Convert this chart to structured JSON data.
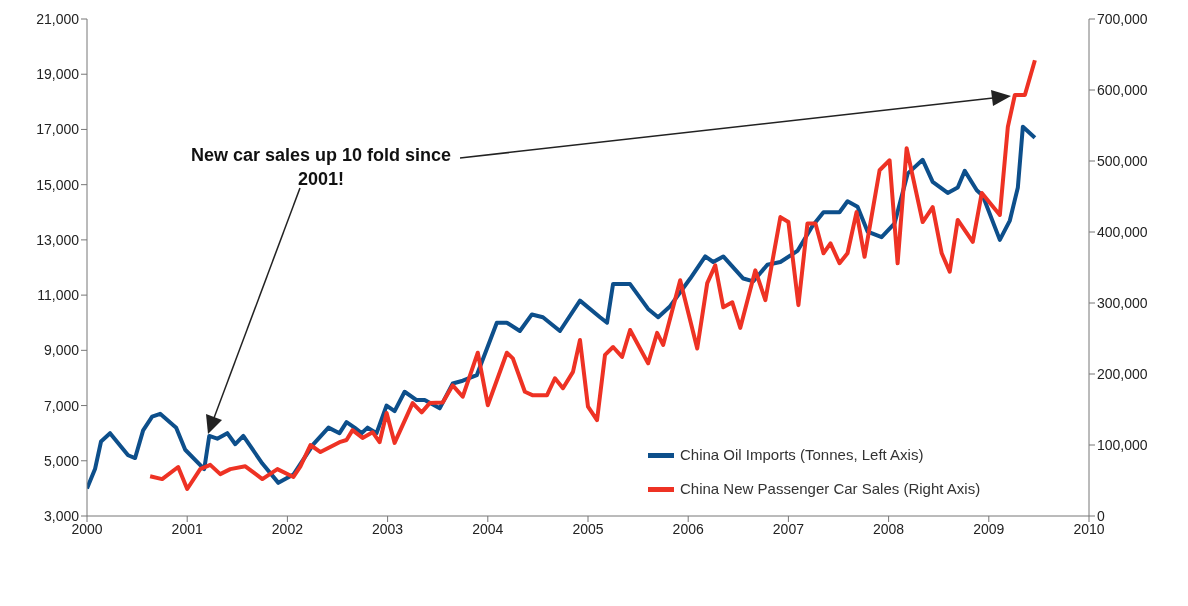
{
  "chart_data": {
    "type": "line",
    "annotations": [
      "New car sales up 10 fold since 2001!"
    ],
    "xlim": [
      2000,
      2010
    ],
    "xticks": [
      2000,
      2001,
      2002,
      2003,
      2004,
      2005,
      2006,
      2007,
      2008,
      2009,
      2010
    ],
    "ylim": [
      3000,
      21000
    ],
    "yticks": [
      {
        "value": 3000,
        "label": "3,000"
      },
      {
        "value": 5000,
        "label": "5,000"
      },
      {
        "value": 7000,
        "label": "7,000"
      },
      {
        "value": 9000,
        "label": "9,000"
      },
      {
        "value": 11000,
        "label": "11,000"
      },
      {
        "value": 13000,
        "label": "13,000"
      },
      {
        "value": 15000,
        "label": "15,000"
      },
      {
        "value": 17000,
        "label": "17,000"
      },
      {
        "value": 19000,
        "label": "19,000"
      },
      {
        "value": 21000,
        "label": "21,000"
      }
    ],
    "y2lim": [
      0,
      700000
    ],
    "y2ticks": [
      0,
      {
        "value": 100000,
        "label": "100,000"
      },
      {
        "value": 200000,
        "label": "200,000"
      },
      {
        "value": 300000,
        "label": "300,000"
      },
      {
        "value": 400000,
        "label": "400,000"
      },
      {
        "value": 500000,
        "label": "500,000"
      },
      {
        "value": 600000,
        "label": "600,000"
      },
      {
        "value": 700000,
        "label": "700,000"
      }
    ],
    "grid": false,
    "legend": "bottom right",
    "marker": "none",
    "line_style": "solid",
    "series": [
      {
        "name": "China Oil Imports (Tonnes, Left Axis)",
        "color": "#0d4f8b",
        "x": [
          2000.0,
          2000.08,
          2000.14,
          2000.23,
          2000.41,
          2000.48,
          2000.56,
          2000.65,
          2000.73,
          2000.89,
          2000.98,
          2001.17,
          2001.22,
          2001.3,
          2001.4,
          2001.48,
          2001.56,
          2001.75,
          2001.91,
          2002.06,
          2002.26,
          2002.41,
          2002.52,
          2002.59,
          2002.67,
          2002.74,
          2002.8,
          2002.89,
          2002.99,
          2003.07,
          2003.17,
          2003.29,
          2003.37,
          2003.52,
          2003.65,
          2003.75,
          2003.89,
          2004.09,
          2004.19,
          2004.32,
          2004.44,
          2004.55,
          2004.72,
          2004.92,
          2005.12,
          2005.19,
          2005.25,
          2005.42,
          2005.6,
          2005.7,
          2005.82,
          2006.02,
          2006.17,
          2006.25,
          2006.35,
          2006.55,
          2006.65,
          2006.79,
          2006.92,
          2007.09,
          2007.24,
          2007.35,
          2007.51,
          2007.59,
          2007.69,
          2007.79,
          2007.93,
          2008.06,
          2008.19,
          2008.34,
          2008.44,
          2008.59,
          2008.69,
          2008.76,
          2008.88,
          2008.94,
          2009.11,
          2009.21,
          2009.29,
          2009.34,
          2009.46
        ],
        "values": [
          4000,
          4700,
          5700,
          6000,
          5200,
          5100,
          6100,
          6600,
          6700,
          6200,
          5400,
          4700,
          5900,
          5800,
          6000,
          5600,
          5900,
          4900,
          4200,
          4500,
          5600,
          6200,
          6000,
          6400,
          6200,
          6000,
          6200,
          6000,
          7000,
          6800,
          7500,
          7200,
          7200,
          6900,
          7800,
          7900,
          8100,
          10000,
          10000,
          9700,
          10300,
          10200,
          9700,
          10800,
          10200,
          10000,
          11400,
          11400,
          10500,
          10200,
          10600,
          11600,
          12400,
          12200,
          12400,
          11600,
          11500,
          12100,
          12200,
          12600,
          13500,
          14000,
          14000,
          14400,
          14200,
          13300,
          13100,
          13600,
          15400,
          15900,
          15100,
          14700,
          14900,
          15500,
          14800,
          14600,
          13000,
          13700,
          14900,
          17100,
          16700
        ]
      },
      {
        "name": "China New Passenger Car Sales (Right Axis)",
        "color": "#ee3224",
        "axis": "y2",
        "x": [
          2000.63,
          2000.75,
          2000.91,
          2001.0,
          2001.13,
          2001.23,
          2001.33,
          2001.43,
          2001.58,
          2001.75,
          2001.9,
          2002.06,
          2002.13,
          2002.23,
          2002.33,
          2002.52,
          2002.59,
          2002.65,
          2002.75,
          2002.85,
          2002.92,
          2002.99,
          2003.07,
          2003.25,
          2003.34,
          2003.42,
          2003.55,
          2003.65,
          2003.75,
          2003.9,
          2004.0,
          2004.19,
          2004.25,
          2004.37,
          2004.45,
          2004.59,
          2004.67,
          2004.75,
          2004.85,
          2004.92,
          2005.0,
          2005.09,
          2005.17,
          2005.25,
          2005.34,
          2005.42,
          2005.6,
          2005.69,
          2005.75,
          2005.92,
          2006.09,
          2006.19,
          2006.27,
          2006.35,
          2006.44,
          2006.52,
          2006.67,
          2006.77,
          2006.92,
          2007.0,
          2007.1,
          2007.19,
          2007.27,
          2007.35,
          2007.42,
          2007.51,
          2007.59,
          2007.68,
          2007.76,
          2007.91,
          2008.01,
          2008.09,
          2008.18,
          2008.34,
          2008.44,
          2008.53,
          2008.61,
          2008.69,
          2008.84,
          2008.93,
          2009.11,
          2009.19,
          2009.26,
          2009.36,
          2009.46
        ],
        "values": [
          56000,
          52000,
          69000,
          38000,
          66000,
          72000,
          59000,
          66000,
          70000,
          52000,
          66000,
          55000,
          70000,
          100000,
          90000,
          104000,
          107000,
          121000,
          110000,
          118000,
          104000,
          145000,
          103000,
          159000,
          146000,
          159000,
          160000,
          184000,
          168000,
          230000,
          156000,
          230000,
          222000,
          175000,
          170000,
          170000,
          194000,
          180000,
          203000,
          248000,
          154000,
          135000,
          227000,
          238000,
          224000,
          262000,
          215000,
          258000,
          241000,
          332000,
          236000,
          328000,
          353000,
          294000,
          301000,
          265000,
          346000,
          304000,
          421000,
          414000,
          297000,
          412000,
          412000,
          370000,
          384000,
          356000,
          370000,
          428000,
          365000,
          487000,
          501000,
          356000,
          518000,
          414000,
          435000,
          370000,
          344000,
          417000,
          386000,
          455000,
          424000,
          548000,
          593000,
          593000,
          642000
        ]
      }
    ]
  }
}
